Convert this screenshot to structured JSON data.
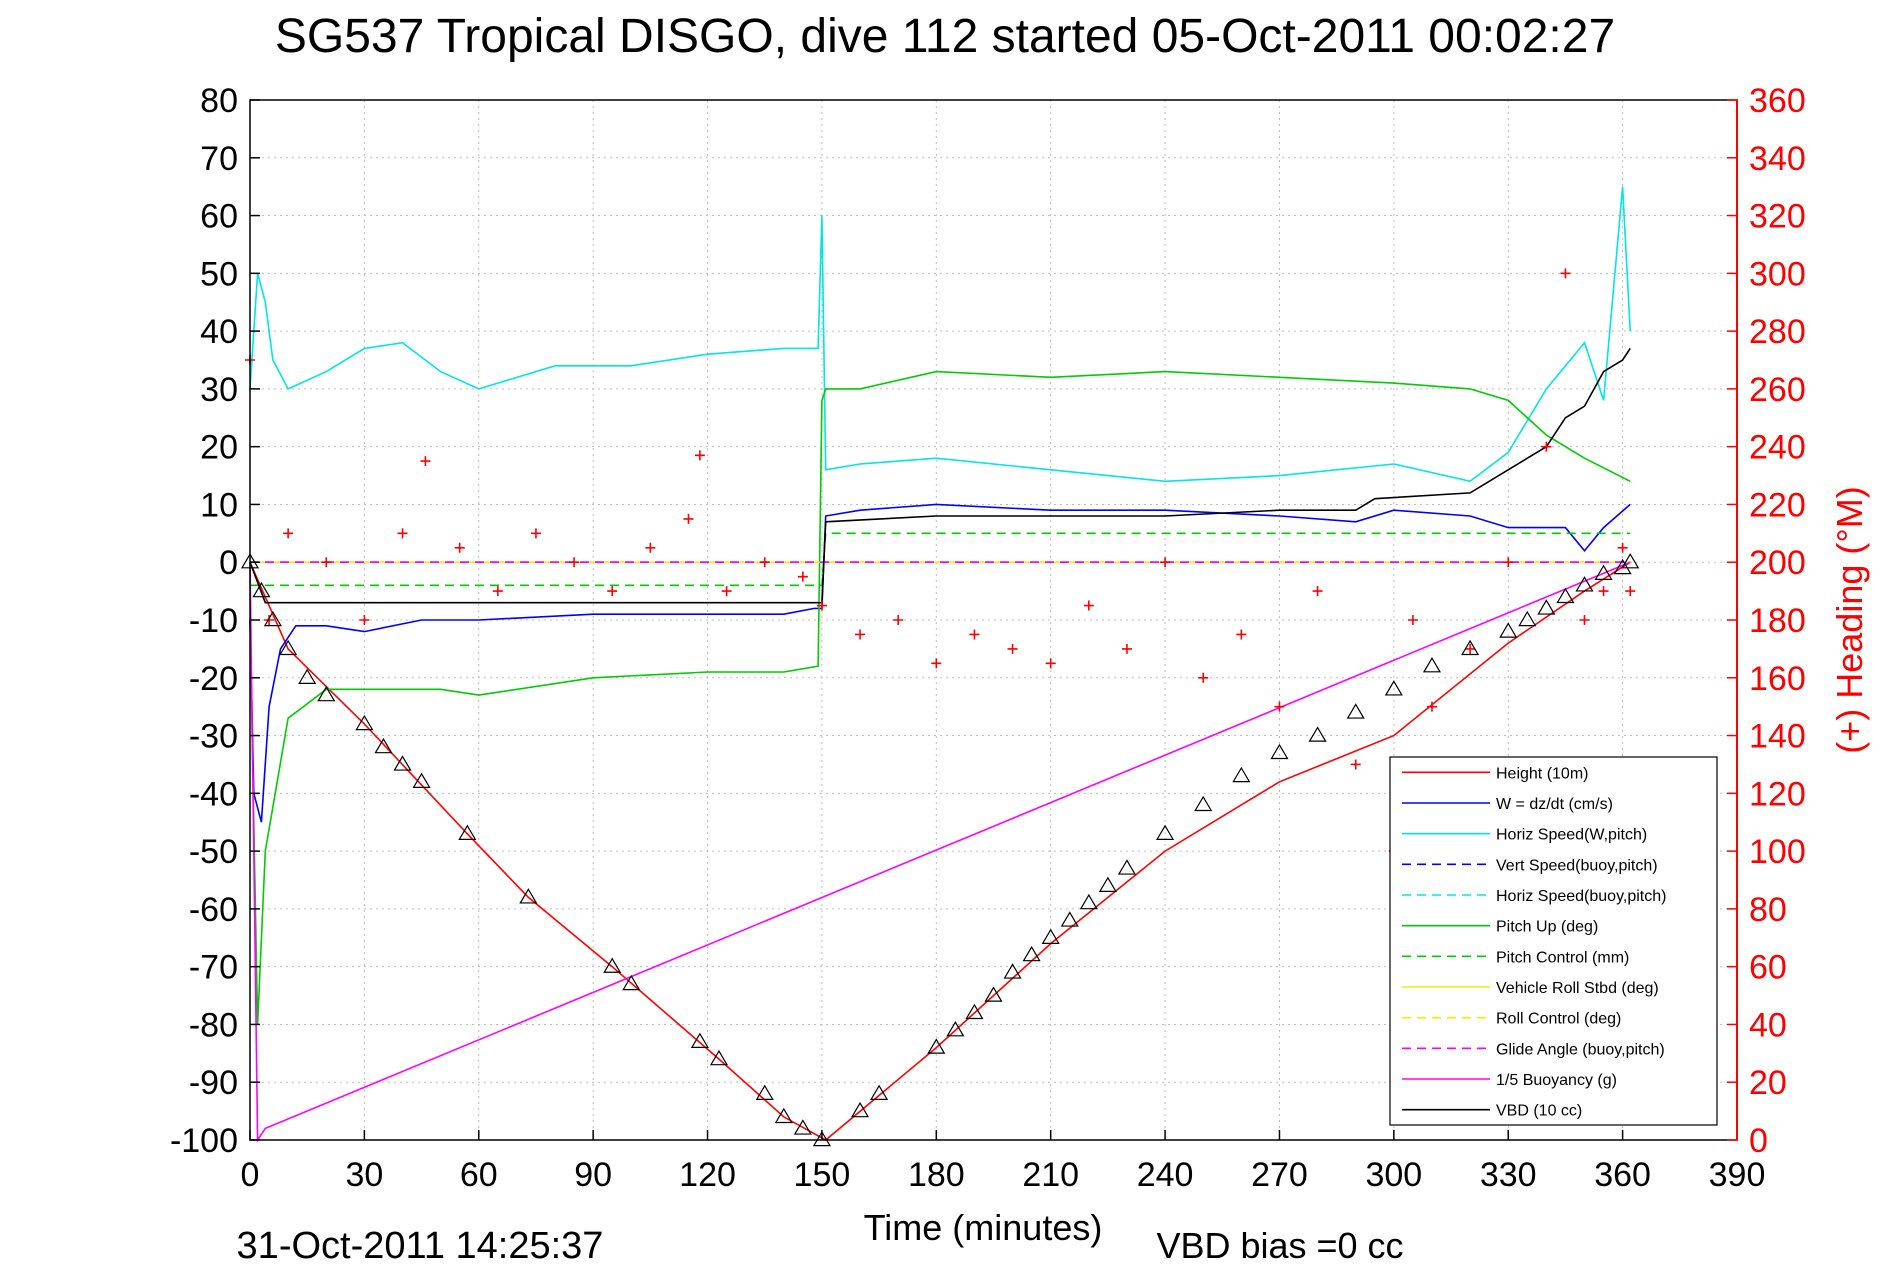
{
  "chart_data": {
    "type": "line",
    "title": "SG537 Tropical DISGO, dive 112 started 05-Oct-2011 00:02:27",
    "xlabel": "Time (minutes)",
    "ylabel_right": "(+) Heading (°M)",
    "footer_date": "31-Oct-2011 14:25:37",
    "footer_bias": "VBD bias =0 cc",
    "xlim": [
      0,
      390
    ],
    "ylim": [
      -100,
      80
    ],
    "y2lim": [
      0,
      360
    ],
    "xticks": [
      0,
      30,
      60,
      90,
      120,
      150,
      180,
      210,
      240,
      270,
      300,
      330,
      360,
      390
    ],
    "yticks": [
      80,
      70,
      60,
      50,
      40,
      30,
      20,
      10,
      0,
      -10,
      -20,
      -30,
      -40,
      -50,
      -60,
      -70,
      -80,
      -90,
      -100
    ],
    "y2ticks": [
      360,
      340,
      320,
      300,
      280,
      260,
      240,
      220,
      200,
      180,
      160,
      140,
      120,
      100,
      80,
      60,
      40,
      20,
      0
    ],
    "grid": true,
    "legend_position": "bottom-right",
    "series": [
      {
        "name": "Height (10m)",
        "color": "#ff0000",
        "dash": "solid",
        "x": [
          0,
          10,
          30,
          57,
          73,
          95,
          123,
          140,
          151,
          180,
          210,
          240,
          270,
          300,
          330,
          350,
          362
        ],
        "y": [
          0,
          -15,
          -28,
          -47,
          -58,
          -70,
          -86,
          -96,
          -100,
          -84,
          -66,
          -50,
          -38,
          -30,
          -14,
          -5,
          0
        ]
      },
      {
        "name": "W = dz/dt (cm/s)",
        "color": "#0000ff",
        "dash": "solid",
        "x": [
          0,
          1,
          3,
          5,
          8,
          12,
          20,
          30,
          45,
          60,
          90,
          120,
          140,
          148,
          150,
          151,
          160,
          180,
          210,
          240,
          270,
          290,
          300,
          320,
          330,
          345,
          350,
          355,
          362
        ],
        "y": [
          -10,
          -40,
          -45,
          -25,
          -15,
          -11,
          -11,
          -12,
          -10,
          -10,
          -9,
          -9,
          -9,
          -8,
          -8,
          8,
          9,
          10,
          9,
          9,
          8,
          7,
          9,
          8,
          6,
          6,
          2,
          6,
          10
        ]
      },
      {
        "name": "Horiz Speed(W,pitch)",
        "color": "#00e5e5",
        "dash": "solid",
        "x": [
          0,
          2,
          4,
          6,
          10,
          20,
          30,
          40,
          50,
          60,
          80,
          100,
          120,
          140,
          149,
          150,
          151,
          160,
          180,
          210,
          240,
          270,
          300,
          320,
          330,
          340,
          350,
          355,
          360,
          362
        ],
        "y": [
          30,
          50,
          45,
          35,
          30,
          33,
          37,
          38,
          33,
          30,
          34,
          34,
          36,
          37,
          37,
          60,
          16,
          17,
          18,
          16,
          14,
          15,
          17,
          14,
          19,
          30,
          38,
          28,
          65,
          40
        ]
      },
      {
        "name": "Vert Speed(buoy,pitch)",
        "color": "#0000ff",
        "dash": "dashed",
        "x": [
          0,
          150,
          151,
          362
        ],
        "y": [
          0,
          0,
          0,
          0
        ]
      },
      {
        "name": "Horiz Speed(buoy,pitch)",
        "color": "#00e5e5",
        "dash": "dashed",
        "x": [
          0,
          150,
          151,
          362
        ],
        "y": [
          0,
          0,
          0,
          0
        ]
      },
      {
        "name": "Pitch Up (deg)",
        "color": "#00cc00",
        "dash": "solid",
        "x": [
          0,
          2,
          4,
          10,
          20,
          30,
          50,
          60,
          90,
          120,
          140,
          149,
          150,
          151,
          160,
          180,
          210,
          240,
          270,
          300,
          320,
          330,
          340,
          350,
          362
        ],
        "y": [
          -10,
          -80,
          -50,
          -27,
          -22,
          -22,
          -22,
          -23,
          -20,
          -19,
          -19,
          -18,
          28,
          30,
          30,
          33,
          32,
          33,
          32,
          31,
          30,
          28,
          22,
          18,
          14
        ]
      },
      {
        "name": "Pitch Control (mm)",
        "color": "#00cc00",
        "dash": "dashed",
        "x": [
          0,
          150,
          151,
          362
        ],
        "y": [
          -4,
          -4,
          5,
          5
        ]
      },
      {
        "name": "Vehicle Roll Stbd (deg)",
        "color": "#eeee00",
        "dash": "solid",
        "x": [
          0,
          150,
          151,
          362
        ],
        "y": [
          0,
          0,
          0,
          0
        ]
      },
      {
        "name": "Roll Control (deg)",
        "color": "#eeee00",
        "dash": "dashed",
        "x": [
          0,
          150,
          151,
          362
        ],
        "y": [
          0,
          0,
          0,
          0
        ]
      },
      {
        "name": "Glide Angle (buoy,pitch)",
        "color": "#ff00ff",
        "dash": "dashed",
        "x": [
          0,
          362
        ],
        "y": [
          0,
          0
        ]
      },
      {
        "name": "1/5 Buoyancy (g)",
        "color": "#ff00ff",
        "dash": "solid",
        "x": [
          0,
          2,
          4,
          362
        ],
        "y": [
          0,
          -100,
          -98,
          0
        ]
      },
      {
        "name": "VBD (10 cc)",
        "color": "#000000",
        "dash": "solid",
        "x": [
          0,
          4,
          10,
          40,
          60,
          149,
          150,
          151,
          180,
          240,
          270,
          290,
          295,
          320,
          330,
          340,
          345,
          350,
          355,
          360,
          362
        ],
        "y": [
          0,
          -7,
          -7,
          -7,
          -7,
          -7,
          -7,
          7,
          8,
          8,
          9,
          9,
          11,
          12,
          16,
          20,
          25,
          27,
          33,
          35,
          37
        ]
      }
    ],
    "heading": {
      "name": "(+) Heading (°M)",
      "axis": "right",
      "color": "#ff0000",
      "marker": "+",
      "x": [
        0,
        5,
        10,
        20,
        30,
        40,
        46,
        55,
        65,
        75,
        85,
        95,
        105,
        115,
        118,
        125,
        135,
        145,
        150,
        160,
        170,
        180,
        190,
        200,
        210,
        220,
        230,
        240,
        250,
        260,
        270,
        280,
        290,
        300,
        305,
        310,
        320,
        330,
        340,
        345,
        350,
        355,
        360,
        362
      ],
      "y": [
        270,
        180,
        210,
        200,
        180,
        210,
        235,
        205,
        190,
        210,
        200,
        190,
        205,
        215,
        237,
        190,
        200,
        195,
        185,
        175,
        180,
        165,
        175,
        170,
        165,
        185,
        170,
        200,
        160,
        175,
        150,
        190,
        130,
        100,
        180,
        150,
        170,
        200,
        240,
        300,
        180,
        190,
        205,
        190
      ]
    },
    "position_markers": {
      "name": "Height (10m)",
      "color": "#000000",
      "marker": "triangle",
      "x": [
        0,
        3,
        6,
        10,
        15,
        20,
        30,
        35,
        40,
        45,
        57,
        73,
        95,
        100,
        118,
        123,
        135,
        140,
        145,
        150,
        160,
        165,
        180,
        185,
        190,
        195,
        200,
        205,
        210,
        215,
        220,
        225,
        230,
        240,
        250,
        260,
        270,
        280,
        290,
        300,
        310,
        320,
        330,
        335,
        340,
        345,
        350,
        355,
        360,
        362
      ],
      "y": [
        0,
        -5,
        -10,
        -15,
        -20,
        -23,
        -28,
        -32,
        -35,
        -38,
        -47,
        -58,
        -70,
        -73,
        -83,
        -86,
        -92,
        -96,
        -98,
        -100,
        -95,
        -92,
        -84,
        -81,
        -78,
        -75,
        -71,
        -68,
        -65,
        -62,
        -59,
        -56,
        -53,
        -47,
        -42,
        -37,
        -33,
        -30,
        -26,
        -22,
        -18,
        -15,
        -12,
        -10,
        -8,
        -6,
        -4,
        -2,
        -1,
        0
      ]
    }
  }
}
